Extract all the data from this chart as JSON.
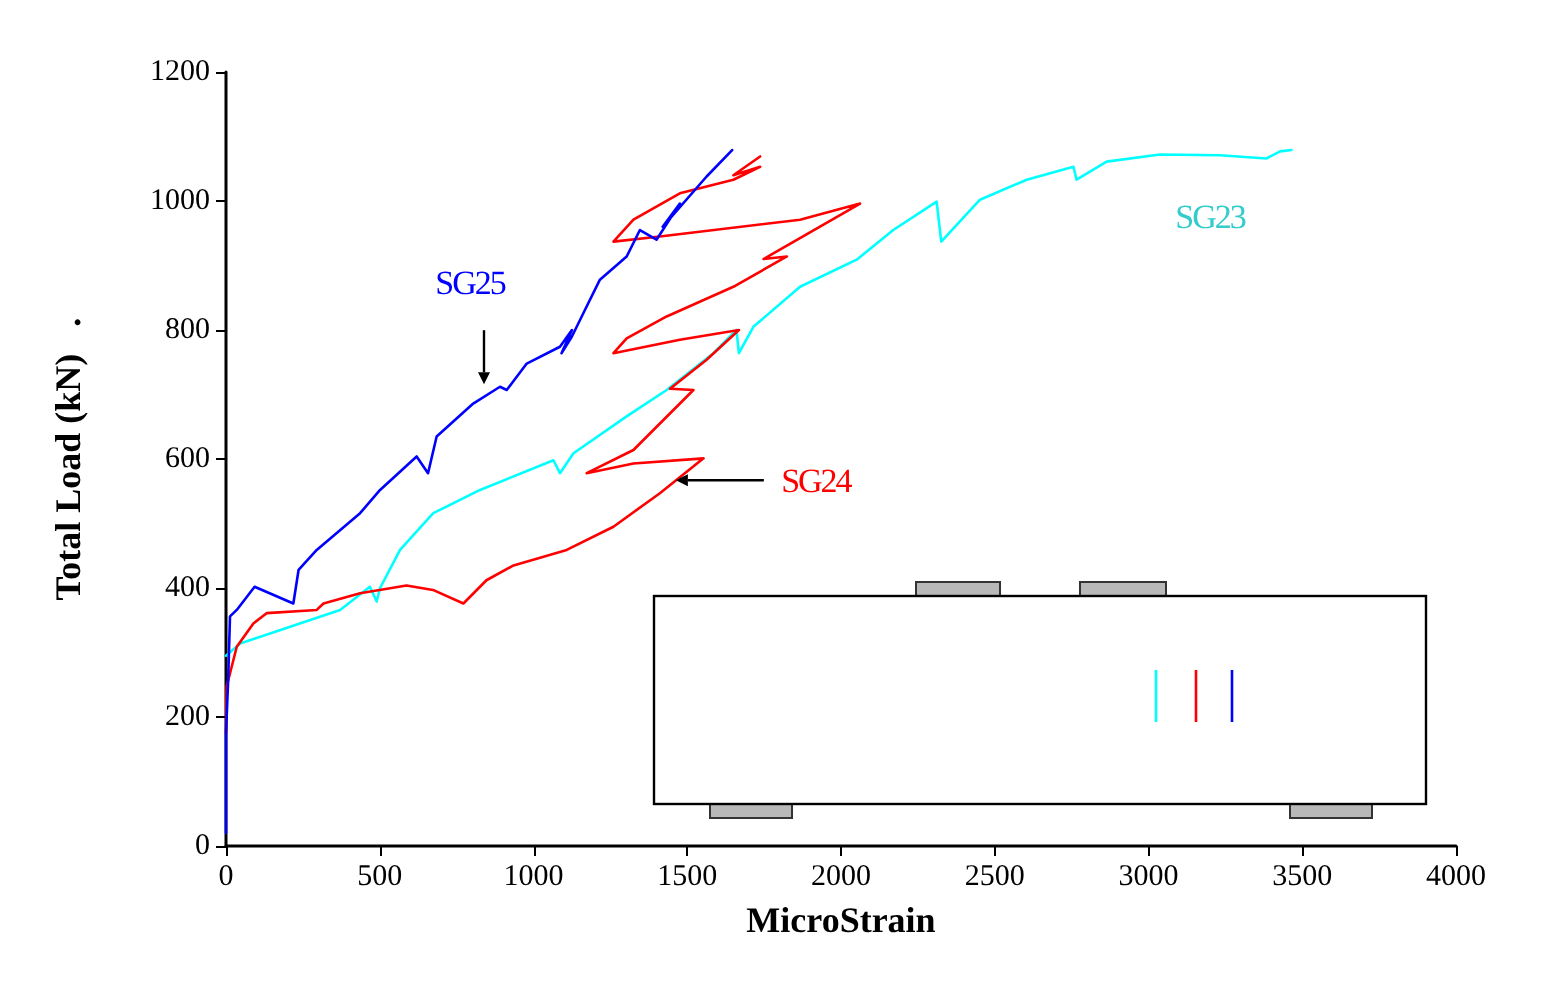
{
  "chart_data": {
    "type": "line",
    "xlabel": "MicroStrain",
    "ylabel": "Total Load (kN)   .",
    "xlim": [
      0,
      4000
    ],
    "xticks": [
      0,
      500,
      1000,
      1500,
      2000,
      2500,
      3000,
      3500,
      4000
    ],
    "ylim": [
      0,
      1200
    ],
    "yticks": [
      0,
      200,
      400,
      600,
      800,
      1000,
      1200
    ],
    "grid": false,
    "marker": "none",
    "line_style": "solid",
    "annotations": [
      {
        "text": "SG25",
        "x": 839,
        "y": 716
      },
      {
        "text": "SG24",
        "x": 1463,
        "y": 567
      },
      "SG23"
    ],
    "series": [
      {
        "color": "#00ffff",
        "x": [
          0,
          46,
          371,
          468,
          490,
          501,
          566,
          674,
          826,
          1065,
          1086,
          1130,
          1303,
          1433,
          1585,
          1660,
          1668,
          1715,
          1867,
          2051,
          2170,
          2311,
          2326,
          2452,
          2604,
          2756,
          2766,
          2864,
          3037,
          3232,
          3384,
          3428,
          3465
        ],
        "values": [
          295,
          314,
          366,
          402,
          379,
          400,
          459,
          516,
          552,
          598,
          578,
          609,
          666,
          707,
          764,
          800,
          764,
          805,
          867,
          909,
          955,
          999,
          937,
          1002,
          1033,
          1053,
          1033,
          1061,
          1072,
          1071,
          1066,
          1077,
          1079
        ]
      },
      {
        "color": "#ff0000",
        "x": [
          0,
          2,
          35,
          89,
          132,
          295,
          317,
          436,
          587,
          673,
          772,
          847,
          935,
          1108,
          1260,
          1411,
          1553,
          1325,
          1173,
          1325,
          1520,
          1444,
          1563,
          1668,
          1476,
          1260,
          1303,
          1433,
          1650,
          1824,
          1748,
          2062,
          1867,
          1411,
          1260,
          1325,
          1476,
          1650,
          1737,
          1650,
          1737
        ],
        "values": [
          175,
          247,
          309,
          345,
          361,
          366,
          376,
          392,
          404,
          397,
          376,
          412,
          435,
          459,
          495,
          547,
          601,
          593,
          578,
          614,
          707,
          709,
          754,
          800,
          785,
          764,
          787,
          821,
          867,
          914,
          910,
          996,
          971,
          945,
          937,
          971,
          1012,
          1033,
          1053,
          1040,
          1069
        ]
      },
      {
        "color": "#0000ff",
        "x": [
          0,
          0,
          7,
          13,
          35,
          93,
          219,
          236,
          295,
          436,
          501,
          620,
          657,
          685,
          804,
          891,
          913,
          978,
          1086,
          1125,
          1091,
          1125,
          1162,
          1216,
          1303,
          1346,
          1400,
          1476,
          1420,
          1563,
          1646
        ],
        "values": [
          20,
          175,
          257,
          356,
          366,
          402,
          376,
          428,
          459,
          516,
          552,
          604,
          578,
          635,
          686,
          712,
          707,
          748,
          774,
          800,
          764,
          790,
          826,
          878,
          914,
          955,
          940,
          996,
          960,
          1038,
          1079
        ]
      }
    ]
  }
}
